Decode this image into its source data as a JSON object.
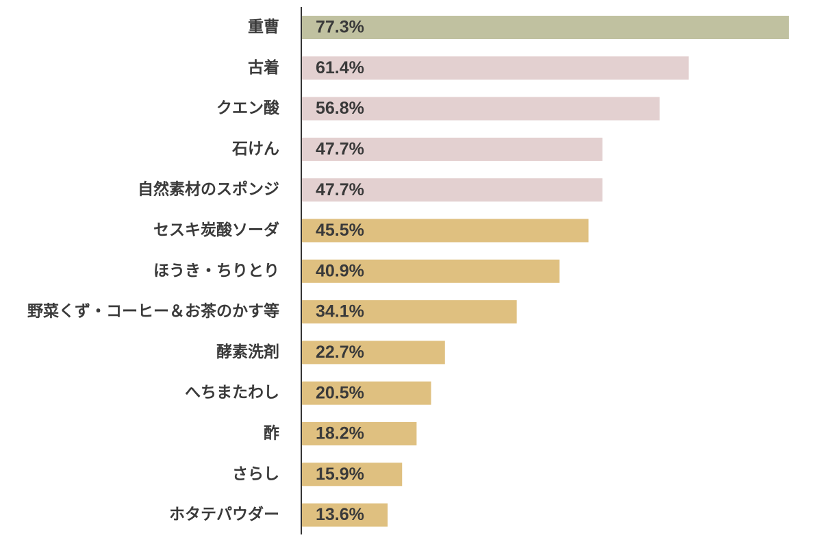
{
  "chart_data": {
    "type": "bar",
    "orientation": "horizontal",
    "categories": [
      "重曹",
      "古着",
      "クエン酸",
      "石けん",
      "自然素材のスポンジ",
      "セスキ炭酸ソーダ",
      "ほうき・ちりとり",
      "野菜くず・コーヒー＆お茶のかす等",
      "酵素洗剤",
      "へちまたわし",
      "酢",
      "さらし",
      "ホタテパウダー"
    ],
    "values": [
      77.3,
      61.4,
      56.8,
      47.7,
      47.7,
      45.5,
      40.9,
      34.1,
      22.7,
      20.5,
      18.2,
      15.9,
      13.6
    ],
    "value_labels": [
      "77.3%",
      "61.4%",
      "56.8%",
      "47.7%",
      "47.7%",
      "45.5%",
      "40.9%",
      "34.1%",
      "22.7%",
      "20.5%",
      "18.2%",
      "15.9%",
      "13.6%"
    ],
    "colors": [
      "#c0c1a0",
      "#e3d0d0",
      "#e3d0d0",
      "#e3d0d0",
      "#e3d0d0",
      "#dfc080",
      "#dfc080",
      "#dfc080",
      "#dfc080",
      "#dfc080",
      "#dfc080",
      "#dfc080",
      "#dfc080"
    ]
  }
}
